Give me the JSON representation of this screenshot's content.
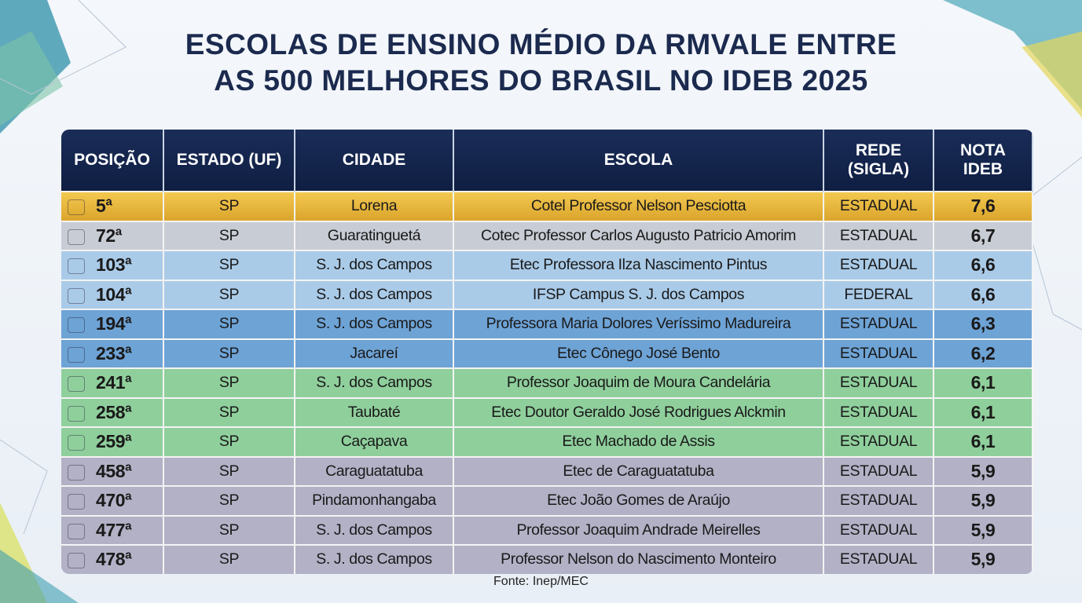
{
  "header": {
    "title_lines": [
      "ESCOLAS DE ENSINO MÉDIO DA RMVALE ENTRE",
      "AS 500 MELHORES DO BRASIL NO IDEB 2025"
    ]
  },
  "table": {
    "columns": [
      [
        "POSIÇÃO"
      ],
      [
        "ESTADO (UF)"
      ],
      [
        "CIDADE"
      ],
      [
        "ESCOLA"
      ],
      [
        "REDE",
        "(SIGLA)"
      ],
      [
        "NOTA",
        "IDEB"
      ]
    ],
    "rows": [
      [
        "5ª",
        "SP",
        "Lorena",
        "Cotel Professor Nelson Pesciotta",
        "ESTADUAL",
        "7,6"
      ],
      [
        "72ª",
        "SP",
        "Guaratinguetá",
        "Cotec Professor Carlos Augusto Patricio Amorim",
        "ESTADUAL",
        "6,7"
      ],
      [
        "103ª",
        "SP",
        "S. J. dos Campos",
        "Etec Professora Ilza Nascimento Pintus",
        "ESTADUAL",
        "6,6"
      ],
      [
        "104ª",
        "SP",
        "S. J. dos Campos",
        "IFSP Campus S. J. dos Campos",
        "FEDERAL",
        "6,6"
      ],
      [
        "194ª",
        "SP",
        "S. J. dos Campos",
        "Professora Maria Dolores Veríssimo Madureira",
        "ESTADUAL",
        "6,3"
      ],
      [
        "233ª",
        "SP",
        "Jacareí",
        "Etec Cônego José Bento",
        "ESTADUAL",
        "6,2"
      ],
      [
        "241ª",
        "SP",
        "S. J. dos Campos",
        "Professor Joaquim de Moura Candelária",
        "ESTADUAL",
        "6,1"
      ],
      [
        "258ª",
        "SP",
        "Taubaté",
        "Etec Doutor Geraldo José Rodrigues Alckmin",
        "ESTADUAL",
        "6,1"
      ],
      [
        "259ª",
        "SP",
        "Caçapava",
        "Etec Machado de Assis",
        "ESTADUAL",
        "6,1"
      ],
      [
        "458ª",
        "SP",
        "Caraguatatuba",
        "Etec de Caraguatatuba",
        "ESTADUAL",
        "5,9"
      ],
      [
        "470ª",
        "SP",
        "Pindamonhangaba",
        "Etec João Gomes de Araújo",
        "ESTADUAL",
        "5,9"
      ],
      [
        "477ª",
        "SP",
        "S. J. dos Campos",
        "Professor Joaquim Andrade Meirelles",
        "ESTADUAL",
        "5,9"
      ],
      [
        "478ª",
        "SP",
        "S. J. dos Campos",
        "Professor Nelson do Nascimento Monteiro",
        "ESTADUAL",
        "5,9"
      ]
    ]
  },
  "footer": {
    "source": "Fonte: Inep/MEC"
  }
}
